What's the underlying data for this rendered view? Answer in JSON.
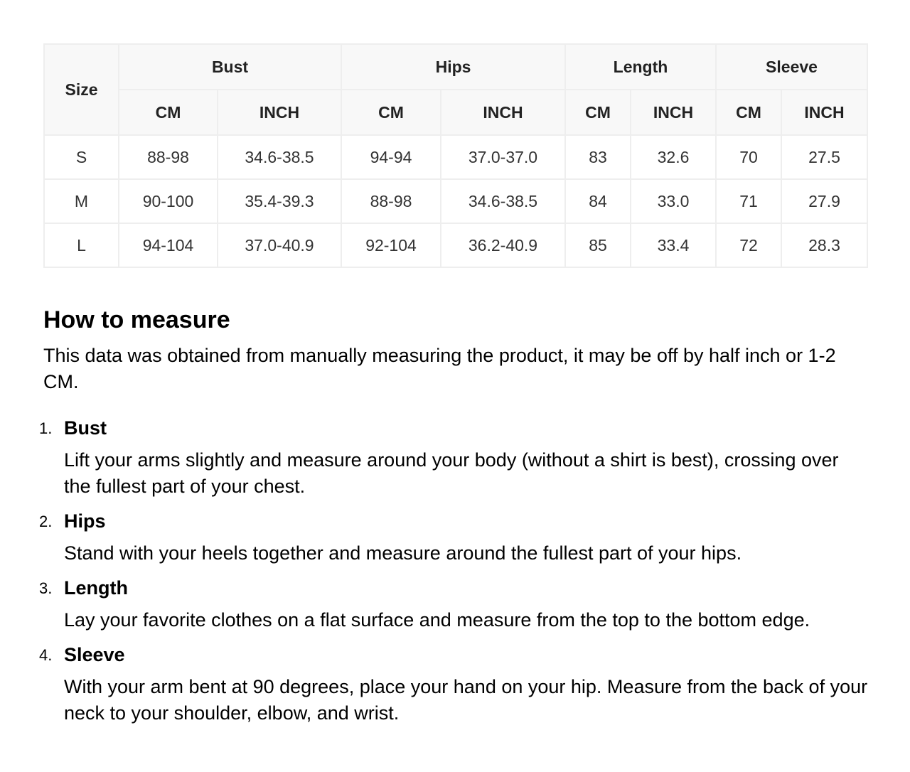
{
  "table": {
    "size_label": "Size",
    "groups": [
      "Bust",
      "Hips",
      "Length",
      "Sleeve"
    ],
    "units": [
      "CM",
      "INCH",
      "CM",
      "INCH",
      "CM",
      "INCH",
      "CM",
      "INCH"
    ],
    "rows": [
      [
        "S",
        "88-98",
        "34.6-38.5",
        "94-94",
        "37.0-37.0",
        "83",
        "32.6",
        "70",
        "27.5"
      ],
      [
        "M",
        "90-100",
        "35.4-39.3",
        "88-98",
        "34.6-38.5",
        "84",
        "33.0",
        "71",
        "27.9"
      ],
      [
        "L",
        "94-104",
        "37.0-40.9",
        "92-104",
        "36.2-40.9",
        "85",
        "33.4",
        "72",
        "28.3"
      ]
    ]
  },
  "guide": {
    "title": "How to measure",
    "intro": "This data was obtained from manually measuring the product, it may be off by half inch or 1-2 CM.",
    "items": [
      {
        "num": "1.",
        "title": "Bust",
        "desc": "Lift your arms slightly and measure around your body (without a shirt is best), crossing over the fullest part of your chest."
      },
      {
        "num": "2.",
        "title": "Hips",
        "desc": "Stand with your heels together and measure around the fullest part of your hips."
      },
      {
        "num": "3.",
        "title": "Length",
        "desc": "Lay your favorite clothes on a flat surface and measure from the top to the bottom edge."
      },
      {
        "num": "4.",
        "title": "Sleeve",
        "desc": "With your arm bent at 90 degrees, place your hand on your hip. Measure from the back of your neck to your shoulder, elbow, and wrist."
      }
    ]
  }
}
